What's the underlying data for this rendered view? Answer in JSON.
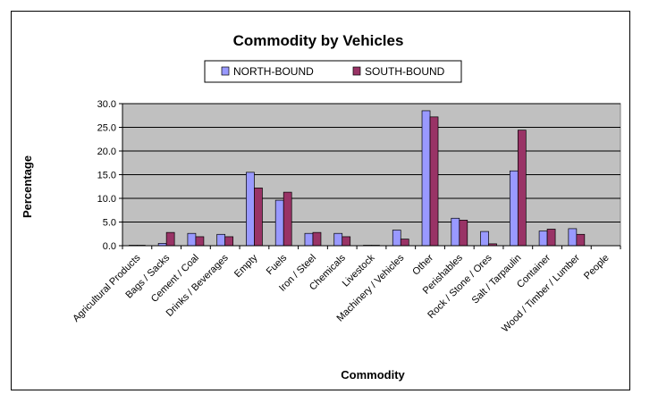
{
  "chart_data": {
    "type": "bar",
    "title": "Commodity by Vehicles",
    "xlabel": "Commodity",
    "ylabel": "Percentage",
    "ylim": [
      0,
      30
    ],
    "yticks": [
      "0.0",
      "5.0",
      "10.0",
      "15.0",
      "20.0",
      "25.0",
      "30.0"
    ],
    "grid": true,
    "legend_position": "top",
    "categories": [
      "Agricultural Products",
      "Bags / Sacks",
      "Cement / Coal",
      "Drinks / Beverages",
      "Empty",
      "Fuels",
      "Iron / Steel",
      "Chemicals",
      "Livestock",
      "Machinery / Vehicles",
      "Other",
      "Perishables",
      "Rock / Stone / Ores",
      "Salt / Tarpaulin",
      "Container",
      "Wood / Timber / Lumber",
      "People"
    ],
    "series": [
      {
        "name": "NORTH-BOUND",
        "color": "#9999ff",
        "values": [
          0.1,
          0.5,
          2.6,
          2.4,
          15.5,
          9.6,
          2.6,
          2.6,
          0.1,
          3.3,
          28.5,
          5.8,
          3.0,
          15.8,
          3.1,
          3.6,
          0.0
        ]
      },
      {
        "name": "SOUTH-BOUND",
        "color": "#993366",
        "values": [
          0.1,
          2.8,
          1.9,
          1.9,
          12.2,
          11.3,
          2.8,
          1.9,
          0.1,
          1.4,
          27.2,
          5.4,
          0.4,
          24.4,
          3.5,
          2.4,
          0.0
        ]
      }
    ],
    "plot_background": "#c0c0c0"
  }
}
